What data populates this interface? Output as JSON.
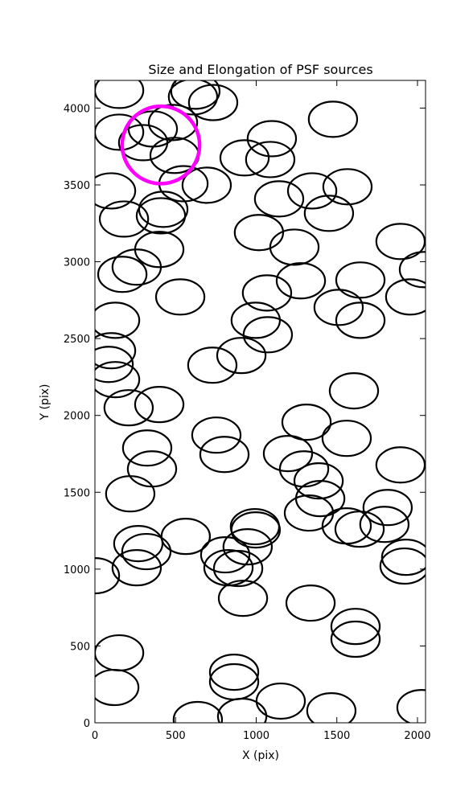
{
  "chart_data": {
    "type": "scatter",
    "title": "Size and Elongation of PSF sources",
    "x_label": "X (pix)",
    "y_label": "Y (pix)",
    "xlim": [
      0,
      2050
    ],
    "ylim": [
      0,
      4180
    ],
    "xticks": [
      0,
      500,
      1000,
      1500,
      2000
    ],
    "yticks": [
      0,
      500,
      1000,
      1500,
      2000,
      2500,
      3000,
      3500,
      4000
    ],
    "marker": "ellipse",
    "ellipse_width": 300,
    "ellipse_height": 230,
    "series": [
      {
        "color": "#000000",
        "x": [
          150,
          623,
          733,
          608,
          484,
          150,
          299,
          359,
          494,
          1476,
          1097,
          928,
          1087,
          100,
          549,
          693,
          1142,
          1347,
          1566,
          1451,
          180,
          409,
          424,
          1017,
          1237,
          1895,
          399,
          259,
          170,
          2040,
          529,
          1067,
          1277,
          1646,
          1955,
          1511,
          1646,
          997,
          125,
          100,
          1072,
          85,
          908,
          728,
          125,
          209,
          399,
          1606,
          1312,
          753,
          1561,
          324,
          803,
          1197,
          354,
          1297,
          1895,
          219,
          1387,
          1397,
          1327,
          1815,
          1795,
          1561,
          1641,
          992,
          997,
          269,
          319,
          563,
          947,
          808,
          828,
          888,
          259,
          1930,
          1920,
          0,
          918,
          1337,
          1616,
          1616,
          150,
          863,
          863,
          120,
          1152,
          638,
          913,
          1466,
          2025
        ],
        "values": [
          4115,
          4110,
          4036,
          4073,
          3906,
          3843,
          3775,
          3864,
          3692,
          3927,
          3801,
          3676,
          3665,
          3461,
          3508,
          3498,
          3409,
          3461,
          3488,
          3315,
          3278,
          3299,
          3341,
          3190,
          3095,
          3132,
          3080,
          2965,
          2918,
          2949,
          2771,
          2797,
          2876,
          2881,
          2771,
          2703,
          2619,
          2619,
          2619,
          2421,
          2525,
          2332,
          2390,
          2327,
          2233,
          2050,
          2071,
          2160,
          1956,
          1872,
          1851,
          1788,
          1746,
          1752,
          1652,
          1652,
          1678,
          1490,
          1574,
          1459,
          1365,
          1401,
          1291,
          1281,
          1260,
          1276,
          1255,
          1166,
          1114,
          1213,
          1145,
          1093,
          1009,
          1004,
          1009,
          1077,
          1020,
          957,
          810,
          779,
          627,
          544,
          455,
          329,
          267,
          230,
          141,
          21,
          42,
          78,
          99
        ]
      }
    ],
    "highlight": {
      "x": 409,
      "y": 3760,
      "radius": 240,
      "color": "#ff00ff"
    }
  }
}
